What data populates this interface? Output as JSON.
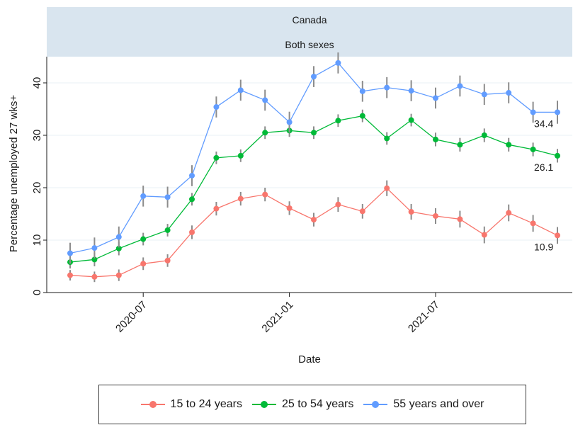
{
  "chart_data": {
    "type": "line",
    "panel": {
      "strip_top": "Canada",
      "strip_bottom": "Both sexes"
    },
    "xlabel": "Date",
    "ylabel": "Percentage unemployed 27 wks+",
    "x": [
      "2020-04",
      "2020-05",
      "2020-06",
      "2020-07",
      "2020-08",
      "2020-09",
      "2020-10",
      "2020-11",
      "2020-12",
      "2021-01",
      "2021-02",
      "2021-03",
      "2021-04",
      "2021-05",
      "2021-06",
      "2021-07",
      "2021-08",
      "2021-09",
      "2021-10",
      "2021-11",
      "2021-12"
    ],
    "x_ticks": [
      "2020-07",
      "2021-01",
      "2021-07"
    ],
    "y_ticks": [
      0,
      10,
      20,
      30,
      40
    ],
    "ylim": [
      0,
      45
    ],
    "grid": "horizontal",
    "series": [
      {
        "name": "15 to 24 years",
        "color": "#f8766d",
        "values": [
          3.3,
          3.0,
          3.3,
          5.5,
          6.1,
          11.5,
          16.0,
          17.9,
          18.7,
          16.1,
          13.9,
          16.8,
          15.5,
          19.9,
          15.4,
          14.6,
          14.0,
          11.0,
          15.2,
          13.2,
          10.9
        ],
        "err": [
          1.0,
          1.0,
          1.1,
          1.2,
          1.2,
          1.3,
          1.3,
          1.3,
          1.3,
          1.3,
          1.3,
          1.4,
          1.4,
          1.5,
          1.5,
          1.5,
          1.6,
          1.6,
          1.6,
          1.6,
          1.6
        ]
      },
      {
        "name": "25 to 54 years",
        "color": "#00ba38",
        "values": [
          5.8,
          6.3,
          8.4,
          10.2,
          11.9,
          17.8,
          25.7,
          26.1,
          30.5,
          30.9,
          30.5,
          32.8,
          33.7,
          29.4,
          32.9,
          29.2,
          28.2,
          30.0,
          28.2,
          27.3,
          26.1
        ],
        "err": [
          1.2,
          1.3,
          1.3,
          1.2,
          1.2,
          1.2,
          1.2,
          1.2,
          1.2,
          1.2,
          1.2,
          1.2,
          1.2,
          1.2,
          1.2,
          1.3,
          1.3,
          1.3,
          1.3,
          1.3,
          1.3
        ]
      },
      {
        "name": "55 years and over",
        "color": "#619cff",
        "values": [
          7.5,
          8.5,
          10.6,
          18.4,
          18.2,
          22.3,
          35.4,
          38.6,
          36.7,
          32.5,
          41.2,
          43.8,
          38.4,
          39.1,
          38.5,
          37.1,
          39.4,
          37.8,
          38.1,
          34.4,
          34.4
        ],
        "err": [
          2.0,
          2.0,
          2.0,
          2.0,
          2.0,
          2.0,
          2.0,
          2.0,
          2.0,
          2.0,
          2.0,
          2.0,
          2.0,
          2.0,
          2.0,
          2.0,
          2.0,
          2.0,
          2.0,
          2.0,
          2.2
        ]
      }
    ],
    "end_labels": [
      "10.9",
      "26.1",
      "34.4"
    ],
    "legend_position": "bottom"
  }
}
